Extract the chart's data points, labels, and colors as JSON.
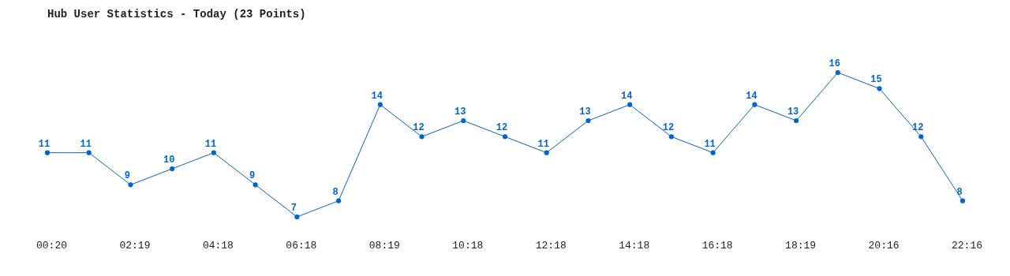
{
  "chart_data": {
    "type": "line",
    "title": "Hub User Statistics - Today (23 Points)",
    "categories": [
      "00:20",
      null,
      "02:19",
      null,
      "04:18",
      null,
      "06:18",
      null,
      "08:19",
      null,
      "10:18",
      null,
      "12:18",
      null,
      "14:18",
      null,
      "16:18",
      null,
      "18:19",
      null,
      "20:16",
      null,
      "22:16"
    ],
    "series": [
      {
        "color": "#0066cc",
        "values": [
          11,
          11,
          9,
          10,
          11,
          9,
          7,
          8,
          14,
          12,
          13,
          12,
          11,
          13,
          14,
          12,
          11,
          14,
          13,
          16,
          15,
          12,
          8
        ]
      }
    ],
    "data_labels": true,
    "marker": "circle",
    "line_style": "solid"
  }
}
